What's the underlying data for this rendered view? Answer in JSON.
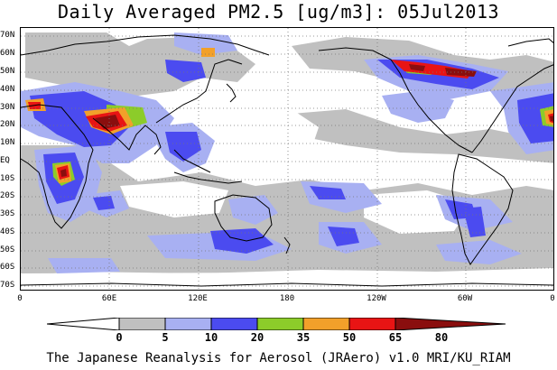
{
  "title": "Daily Averaged PM2.5 [ug/m3]: 05Jul2013",
  "footer": "The Japanese Reanalysis for Aerosol (JRAero) v1.0 MRI/KU_RIAM",
  "lat_labels": [
    "70N",
    "60N",
    "50N",
    "40N",
    "30N",
    "20N",
    "10N",
    "EQ",
    "10S",
    "20S",
    "30S",
    "40S",
    "50S",
    "60S",
    "70S"
  ],
  "lon_labels": [
    "0",
    "60E",
    "120E",
    "180",
    "120W",
    "60W",
    "0"
  ],
  "colorbar": {
    "bins": [
      {
        "color": "#ffffff"
      },
      {
        "color": "#c0c0c0"
      },
      {
        "color": "#a8b0f2"
      },
      {
        "color": "#4b4bf0"
      },
      {
        "color": "#8ccc2a"
      },
      {
        "color": "#f2a02a"
      },
      {
        "color": "#e81414"
      },
      {
        "color": "#8a0e0e"
      }
    ],
    "tick_labels": [
      "0",
      "5",
      "10",
      "20",
      "35",
      "50",
      "65",
      "80"
    ]
  }
}
